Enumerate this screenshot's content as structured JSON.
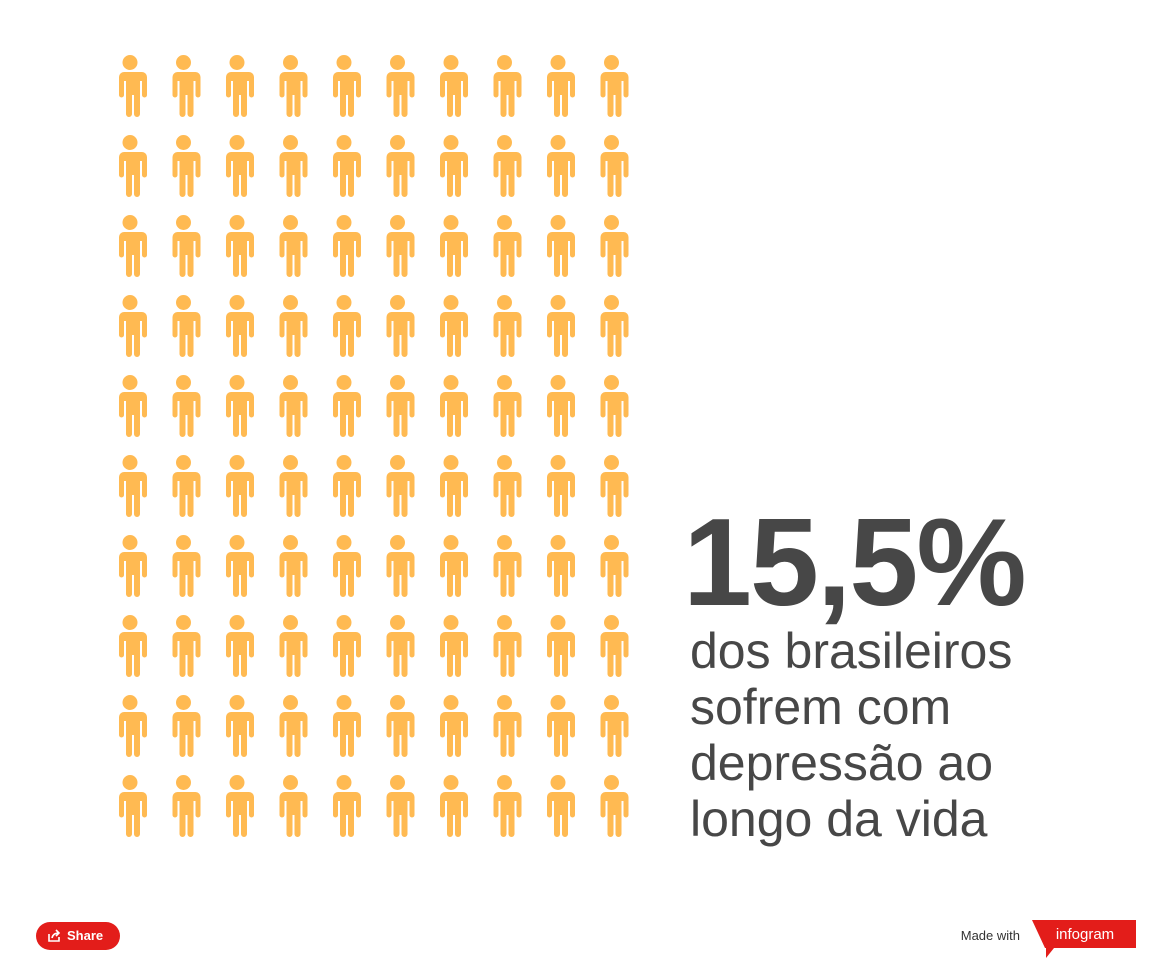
{
  "chart_data": {
    "type": "pictogram",
    "value": 15.5,
    "value_label": "15,5%",
    "caption_lines": [
      "dos brasileiros",
      "sofrem com",
      "depressão ao",
      "longo da vida"
    ],
    "filled_color": "#474747",
    "empty_color": "#ffba52"
  },
  "footer": {
    "share": "Share",
    "made_with": "Made with",
    "brand": "infogram"
  }
}
